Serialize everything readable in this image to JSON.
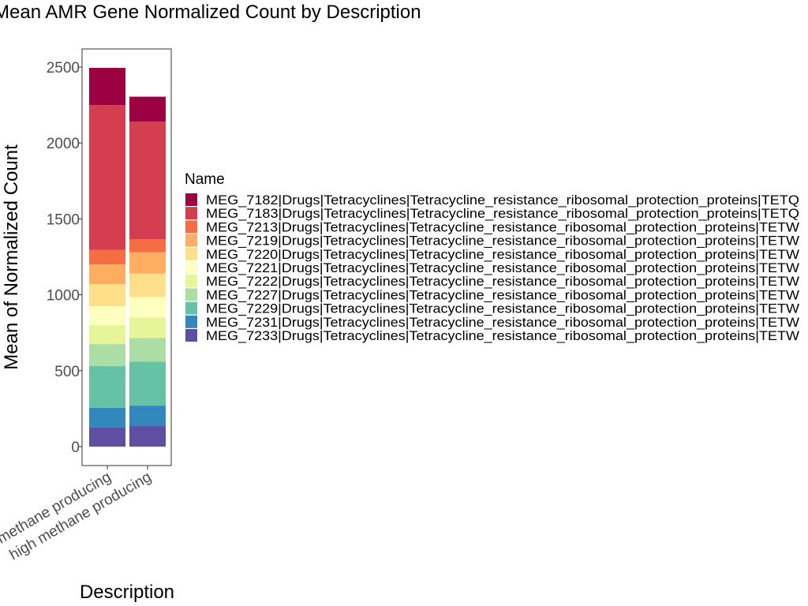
{
  "chart_data": {
    "type": "bar",
    "stacked": true,
    "title": "Mean AMR Gene Normalized Count by Description",
    "xlabel": "Description",
    "ylabel": "Mean of Normalized Count",
    "categories": [
      "low methane producing",
      "high methane producing"
    ],
    "yticks": [
      0,
      500,
      1000,
      1500,
      2000,
      2500
    ],
    "ylim": [
      0,
      2600
    ],
    "grid": false,
    "legend": {
      "title": "Name",
      "position": "right"
    },
    "series": [
      {
        "name": "MEG_7233|Drugs|Tetracyclines|Tetracycline_resistance_ribosomal_protection_proteins|TETW",
        "color": "#5e4fa2",
        "values": [
          128,
          135
        ]
      },
      {
        "name": "MEG_7231|Drugs|Tetracyclines|Tetracycline_resistance_ribosomal_protection_proteins|TETW",
        "color": "#3288bd",
        "values": [
          127,
          135
        ]
      },
      {
        "name": "MEG_7229|Drugs|Tetracyclines|Tetracycline_resistance_ribosomal_protection_proteins|TETW",
        "color": "#66c2a5",
        "values": [
          275,
          290
        ]
      },
      {
        "name": "MEG_7227|Drugs|Tetracyclines|Tetracycline_resistance_ribosomal_protection_proteins|TETW",
        "color": "#abdda4",
        "values": [
          145,
          155
        ]
      },
      {
        "name": "MEG_7222|Drugs|Tetracyclines|Tetracycline_resistance_ribosomal_protection_proteins|TETW",
        "color": "#e6f598",
        "values": [
          125,
          135
        ]
      },
      {
        "name": "MEG_7221|Drugs|Tetracyclines|Tetracycline_resistance_ribosomal_protection_proteins|TETW",
        "color": "#ffffbf",
        "values": [
          125,
          135
        ]
      },
      {
        "name": "MEG_7220|Drugs|Tetracyclines|Tetracycline_resistance_ribosomal_protection_proteins|TETW",
        "color": "#fee08b",
        "values": [
          145,
          155
        ]
      },
      {
        "name": "MEG_7219|Drugs|Tetracyclines|Tetracycline_resistance_ribosomal_protection_proteins|TETW",
        "color": "#fdae61",
        "values": [
          130,
          140
        ]
      },
      {
        "name": "MEG_7213|Drugs|Tetracyclines|Tetracycline_resistance_ribosomal_protection_proteins|TETW",
        "color": "#f46d43",
        "values": [
          95,
          85
        ]
      },
      {
        "name": "MEG_7183|Drugs|Tetracyclines|Tetracycline_resistance_ribosomal_protection_proteins|TETQ",
        "color": "#d53e4f",
        "values": [
          955,
          775
        ]
      },
      {
        "name": "MEG_7182|Drugs|Tetracyclines|Tetracycline_resistance_ribosomal_protection_proteins|TETQ",
        "color": "#9e0142",
        "values": [
          245,
          165
        ]
      }
    ]
  }
}
